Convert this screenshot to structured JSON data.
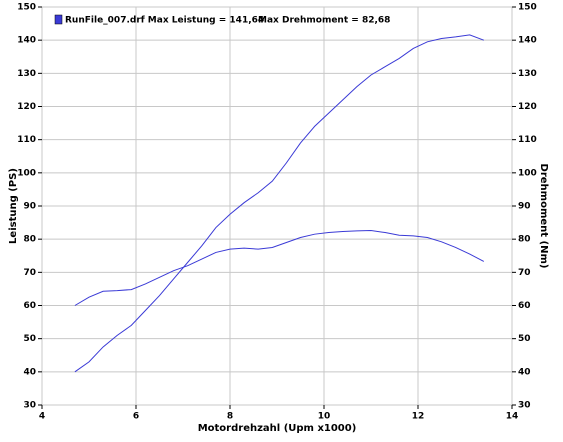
{
  "chart_data": {
    "type": "line",
    "annotations": [
      "RunFile_007.drf Max Leistung = 141,64",
      "Max Drehmoment = 82,68"
    ],
    "xlabel": "Motordrehzahl (Upm x1000)",
    "ylabel": "Leistung (PS)",
    "y2label": "Drehmoment (Nm)",
    "x": [
      4.7,
      5.0,
      5.3,
      5.6,
      5.9,
      6.2,
      6.5,
      6.8,
      7.1,
      7.4,
      7.7,
      8.0,
      8.3,
      8.6,
      8.9,
      9.2,
      9.5,
      9.8,
      10.1,
      10.4,
      10.7,
      11.0,
      11.3,
      11.6,
      11.9,
      12.2,
      12.5,
      12.8,
      13.1,
      13.4
    ],
    "series": [
      {
        "color": "#3a3ad6",
        "values": [
          40,
          43,
          47.5,
          51,
          54,
          58.5,
          63,
          68,
          73,
          78,
          83.5,
          87.5,
          91,
          94,
          97.5,
          103,
          109,
          114,
          118,
          122,
          126,
          129.5,
          132,
          134.5,
          137.5,
          139.5,
          140.5,
          141,
          141.6,
          140
        ]
      },
      {
        "color": "#3a3ad6",
        "axis": "y2",
        "values": [
          60,
          62.5,
          64.3,
          64.5,
          64.8,
          66.5,
          68.5,
          70.5,
          72,
          74,
          76,
          77,
          77.3,
          77,
          77.5,
          79,
          80.5,
          81.5,
          82,
          82.3,
          82.5,
          82.6,
          82,
          81.2,
          81,
          80.5,
          79.2,
          77.5,
          75.5,
          73.3
        ]
      }
    ],
    "xlim": [
      4,
      14
    ],
    "xticks": [
      4,
      6,
      8,
      10,
      12,
      14
    ],
    "ylim": [
      30,
      150
    ],
    "yticks": [
      30,
      40,
      50,
      60,
      70,
      80,
      90,
      100,
      110,
      120,
      130,
      140,
      150
    ],
    "y2lim": [
      30,
      150
    ],
    "y2ticks": [
      30,
      40,
      50,
      60,
      70,
      80,
      90,
      100,
      110,
      120,
      130,
      140,
      150
    ],
    "grid": true
  }
}
